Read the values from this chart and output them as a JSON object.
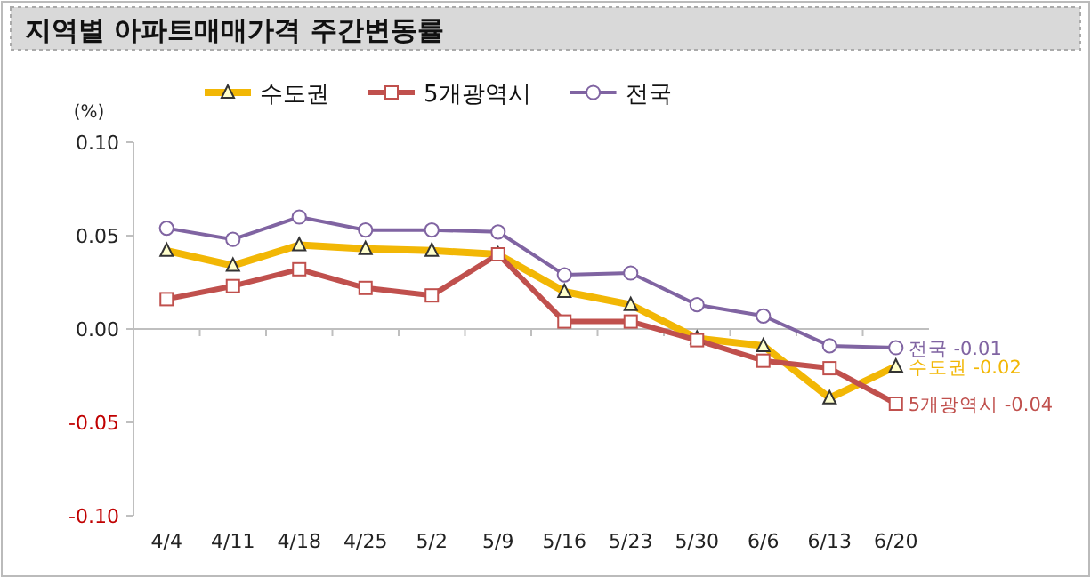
{
  "chart_data": {
    "type": "line",
    "title": "지역별 아파트매매가격 주간변동률",
    "ylabel": "(%)",
    "categories": [
      "4/4",
      "4/11",
      "4/18",
      "4/25",
      "5/2",
      "5/9",
      "5/16",
      "5/23",
      "5/30",
      "6/6",
      "6/13",
      "6/20"
    ],
    "ylim": [
      -0.1,
      0.1
    ],
    "yticks": [
      {
        "value": -0.1,
        "label": "-0.10"
      },
      {
        "value": -0.05,
        "label": "-0.05"
      },
      {
        "value": 0,
        "label": "0.00"
      },
      {
        "value": 0.05,
        "label": "0.05"
      },
      {
        "value": 0.1,
        "label": "0.10"
      }
    ],
    "legend": "top",
    "series": [
      {
        "name": "수도권",
        "color": "#f2b705",
        "marker": "triangle",
        "values": [
          0.042,
          0.034,
          0.045,
          0.043,
          0.042,
          0.04,
          0.02,
          0.013,
          -0.005,
          -0.009,
          -0.037,
          -0.02
        ],
        "value_labels": [
          null,
          null,
          null,
          null,
          null,
          null,
          null,
          null,
          null,
          null,
          null,
          "-0.02"
        ]
      },
      {
        "name": "5개광역시",
        "color": "#c0504d",
        "marker": "square",
        "values": [
          0.016,
          0.023,
          0.032,
          0.022,
          0.018,
          0.04,
          0.004,
          0.004,
          -0.006,
          -0.017,
          -0.021,
          -0.04
        ],
        "value_labels": [
          null,
          null,
          null,
          null,
          null,
          null,
          null,
          null,
          null,
          null,
          null,
          "-0.04"
        ]
      },
      {
        "name": "전국",
        "color": "#8064a2",
        "marker": "circle",
        "values": [
          0.054,
          0.048,
          0.06,
          0.053,
          0.053,
          0.052,
          0.029,
          0.03,
          0.013,
          0.007,
          -0.009,
          -0.01
        ],
        "value_labels": [
          null,
          null,
          null,
          null,
          null,
          null,
          null,
          null,
          null,
          null,
          null,
          "-0.01"
        ]
      }
    ]
  }
}
